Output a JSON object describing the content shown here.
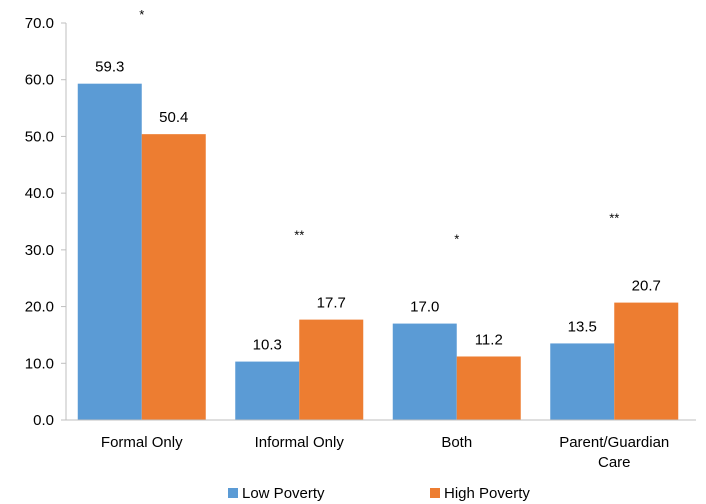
{
  "chart_data": {
    "type": "bar",
    "categories": [
      [
        "Formal Only"
      ],
      [
        "Informal Only"
      ],
      [
        "Both"
      ],
      [
        "Parent/Guardian",
        "Care"
      ]
    ],
    "series": [
      {
        "name": "Low Poverty",
        "color": "#5B9BD5",
        "values": [
          59.3,
          10.3,
          17.0,
          13.5
        ]
      },
      {
        "name": "High Poverty",
        "color": "#ED7D31",
        "values": [
          50.4,
          17.7,
          11.2,
          20.7
        ]
      }
    ],
    "significance": [
      "*",
      "**",
      "*",
      "**"
    ],
    "y_ticks": [
      "0.0",
      "10.0",
      "20.0",
      "30.0",
      "40.0",
      "50.0",
      "60.0",
      "70.0"
    ],
    "ylim": [
      0,
      70
    ],
    "grid": false,
    "legend_position": "bottom"
  }
}
